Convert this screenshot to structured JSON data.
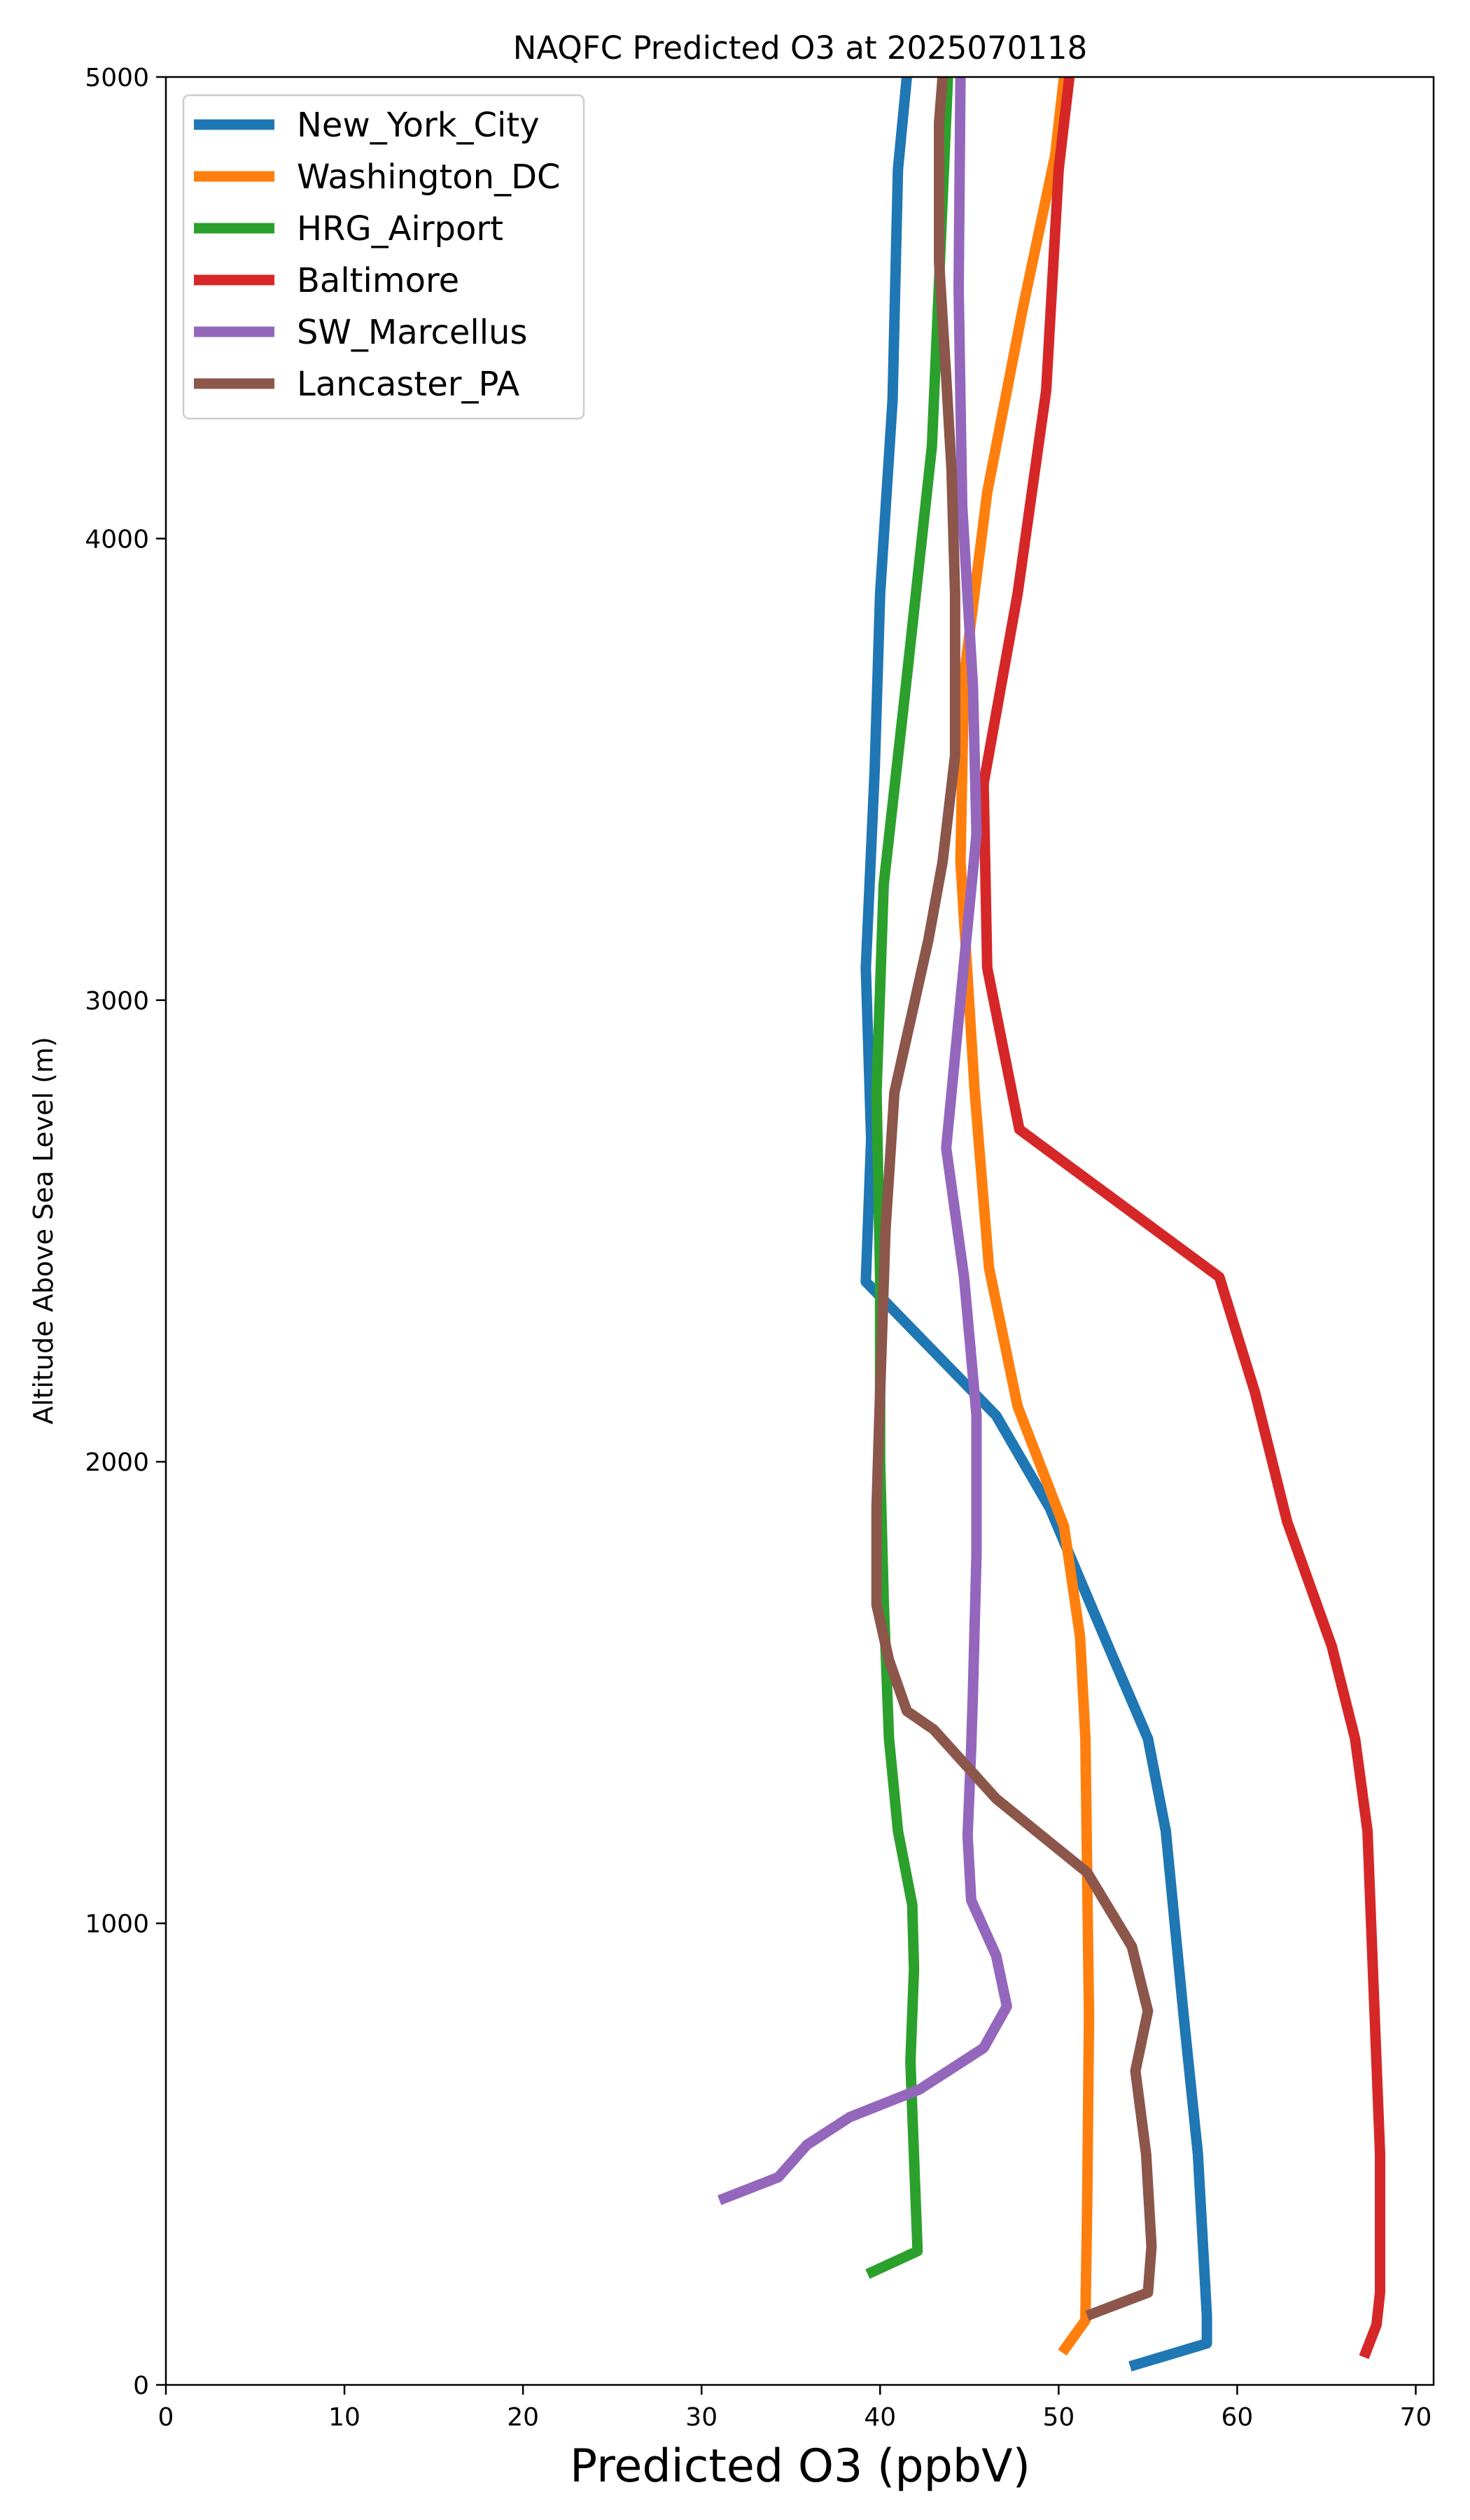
{
  "chart_data": {
    "type": "line",
    "title": "NAQFC Predicted O3 at 2025070118",
    "xlabel": "Predicted O3 (ppbV)",
    "ylabel": "Altitude Above Sea Level (m)",
    "xlim": [
      0,
      71
    ],
    "ylim": [
      0,
      5000
    ],
    "xticks": [
      0,
      10,
      20,
      30,
      40,
      50,
      60,
      70
    ],
    "yticks": [
      0,
      1000,
      2000,
      3000,
      4000,
      5000
    ],
    "grid": false,
    "legend_position": "top-left",
    "series": [
      {
        "name": "New_York_City",
        "color": "#1f77b4",
        "points": [
          [
            54,
            40
          ],
          [
            58.3,
            90
          ],
          [
            58.3,
            150
          ],
          [
            57.8,
            500
          ],
          [
            57.0,
            800
          ],
          [
            56.0,
            1200
          ],
          [
            55.0,
            1400
          ],
          [
            53.0,
            1580
          ],
          [
            49.5,
            1900
          ],
          [
            46.5,
            2100
          ],
          [
            39.2,
            2390
          ],
          [
            39.5,
            2700
          ],
          [
            39.2,
            3070
          ],
          [
            39.7,
            3500
          ],
          [
            40.0,
            3880
          ],
          [
            40.7,
            4300
          ],
          [
            41.0,
            4800
          ],
          [
            41.5,
            5000
          ]
        ]
      },
      {
        "name": "Washington_DC",
        "color": "#ff7f0e",
        "points": [
          [
            50.2,
            70
          ],
          [
            51.5,
            140
          ],
          [
            51.6,
            400
          ],
          [
            51.7,
            800
          ],
          [
            51.5,
            1400
          ],
          [
            51.2,
            1620
          ],
          [
            50.3,
            1860
          ],
          [
            47.7,
            2120
          ],
          [
            46.1,
            2420
          ],
          [
            45.3,
            2800
          ],
          [
            44.5,
            3300
          ],
          [
            44.7,
            3700
          ],
          [
            46.0,
            4100
          ],
          [
            48.0,
            4500
          ],
          [
            49.8,
            4830
          ],
          [
            50.3,
            5000
          ]
        ]
      },
      {
        "name": "HRG_Airport",
        "color": "#2ca02c",
        "points": [
          [
            39.3,
            240
          ],
          [
            42.1,
            290
          ],
          [
            41.7,
            700
          ],
          [
            41.9,
            900
          ],
          [
            41.8,
            1040
          ],
          [
            41.0,
            1200
          ],
          [
            40.5,
            1400
          ],
          [
            40.2,
            1700
          ],
          [
            40.0,
            2000
          ],
          [
            40.0,
            2400
          ],
          [
            39.8,
            2800
          ],
          [
            40.2,
            3250
          ],
          [
            41.5,
            3700
          ],
          [
            42.9,
            4200
          ],
          [
            43.8,
            5000
          ]
        ]
      },
      {
        "name": "Baltimore",
        "color": "#d62728",
        "points": [
          [
            67.1,
            60
          ],
          [
            67.8,
            130
          ],
          [
            68.0,
            200
          ],
          [
            68.0,
            500
          ],
          [
            67.7,
            800
          ],
          [
            67.3,
            1200
          ],
          [
            66.6,
            1400
          ],
          [
            65.3,
            1600
          ],
          [
            62.8,
            1870
          ],
          [
            61.0,
            2150
          ],
          [
            59.0,
            2400
          ],
          [
            47.8,
            2720
          ],
          [
            46.0,
            3070
          ],
          [
            45.8,
            3470
          ],
          [
            47.7,
            3880
          ],
          [
            49.3,
            4320
          ],
          [
            50.0,
            4800
          ],
          [
            50.6,
            5000
          ]
        ]
      },
      {
        "name": "SW_Marcellus",
        "color": "#9467bd",
        "points": [
          [
            31.0,
            400
          ],
          [
            34.3,
            450
          ],
          [
            35.9,
            520
          ],
          [
            38.3,
            580
          ],
          [
            42.2,
            640
          ],
          [
            45.8,
            730
          ],
          [
            47.1,
            820
          ],
          [
            46.5,
            930
          ],
          [
            45.1,
            1050
          ],
          [
            44.9,
            1190
          ],
          [
            45.1,
            1380
          ],
          [
            45.2,
            1500
          ],
          [
            45.4,
            1800
          ],
          [
            45.4,
            2100
          ],
          [
            44.7,
            2400
          ],
          [
            43.7,
            2680
          ],
          [
            44.5,
            3000
          ],
          [
            45.4,
            3360
          ],
          [
            45.2,
            3680
          ],
          [
            44.6,
            4070
          ],
          [
            44.4,
            4540
          ],
          [
            44.5,
            5000
          ]
        ]
      },
      {
        "name": "Lancaster_PA",
        "color": "#8c564b",
        "points": [
          [
            51.6,
            150
          ],
          [
            55.0,
            200
          ],
          [
            55.2,
            300
          ],
          [
            54.9,
            500
          ],
          [
            54.3,
            680
          ],
          [
            55.0,
            810
          ],
          [
            54.1,
            950
          ],
          [
            51.6,
            1110
          ],
          [
            46.5,
            1270
          ],
          [
            43.0,
            1420
          ],
          [
            41.5,
            1460
          ],
          [
            40.5,
            1570
          ],
          [
            39.8,
            1690
          ],
          [
            39.8,
            1900
          ],
          [
            40.0,
            2150
          ],
          [
            40.3,
            2500
          ],
          [
            40.8,
            2800
          ],
          [
            42.7,
            3130
          ],
          [
            43.5,
            3300
          ],
          [
            44.2,
            3530
          ],
          [
            44.2,
            3880
          ],
          [
            44.0,
            4150
          ],
          [
            43.7,
            4350
          ],
          [
            43.3,
            4600
          ],
          [
            43.3,
            4900
          ],
          [
            43.5,
            5000
          ]
        ]
      }
    ]
  }
}
